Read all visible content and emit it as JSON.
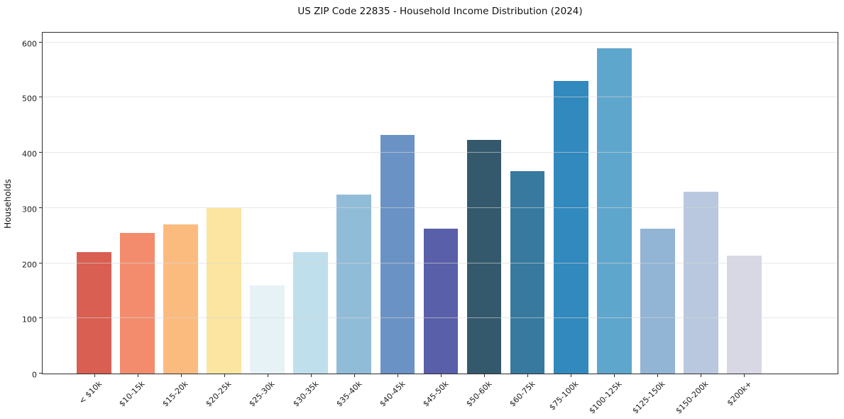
{
  "chart_data": {
    "type": "bar",
    "title": "US ZIP Code 22835 - Household Income Distribution (2024)",
    "xlabel": "",
    "ylabel": "Households",
    "categories": [
      "< $10k",
      "$10-15k",
      "$15-20k",
      "$20-25k",
      "$25-30k",
      "$30-35k",
      "$35-40k",
      "$40-45k",
      "$45-50k",
      "$50-60k",
      "$60-75k",
      "$75-100k",
      "$100-125k",
      "$125-150k",
      "$150-200k",
      "$200k+"
    ],
    "values": [
      220,
      255,
      270,
      300,
      159,
      220,
      324,
      432,
      262,
      423,
      366,
      530,
      589,
      263,
      329,
      213
    ],
    "bar_colors": [
      "#d85f51",
      "#f28c6d",
      "#fcbb7e",
      "#fbe5a0",
      "#e7f2f7",
      "#c0dfec",
      "#91bcd8",
      "#6b92c4",
      "#5a5fa9",
      "#34596d",
      "#37799f",
      "#3289bd",
      "#5fa6cd",
      "#92b4d5",
      "#b9c8de",
      "#d7d8e3"
    ],
    "yticks": [
      0,
      100,
      200,
      300,
      400,
      500,
      600
    ],
    "ylim": [
      0,
      620
    ],
    "grid": "horizontal-only",
    "grid_above_bars": true,
    "legend_position": "none",
    "background_color": "#ffffff",
    "spine_color": "#2e2e2e"
  }
}
